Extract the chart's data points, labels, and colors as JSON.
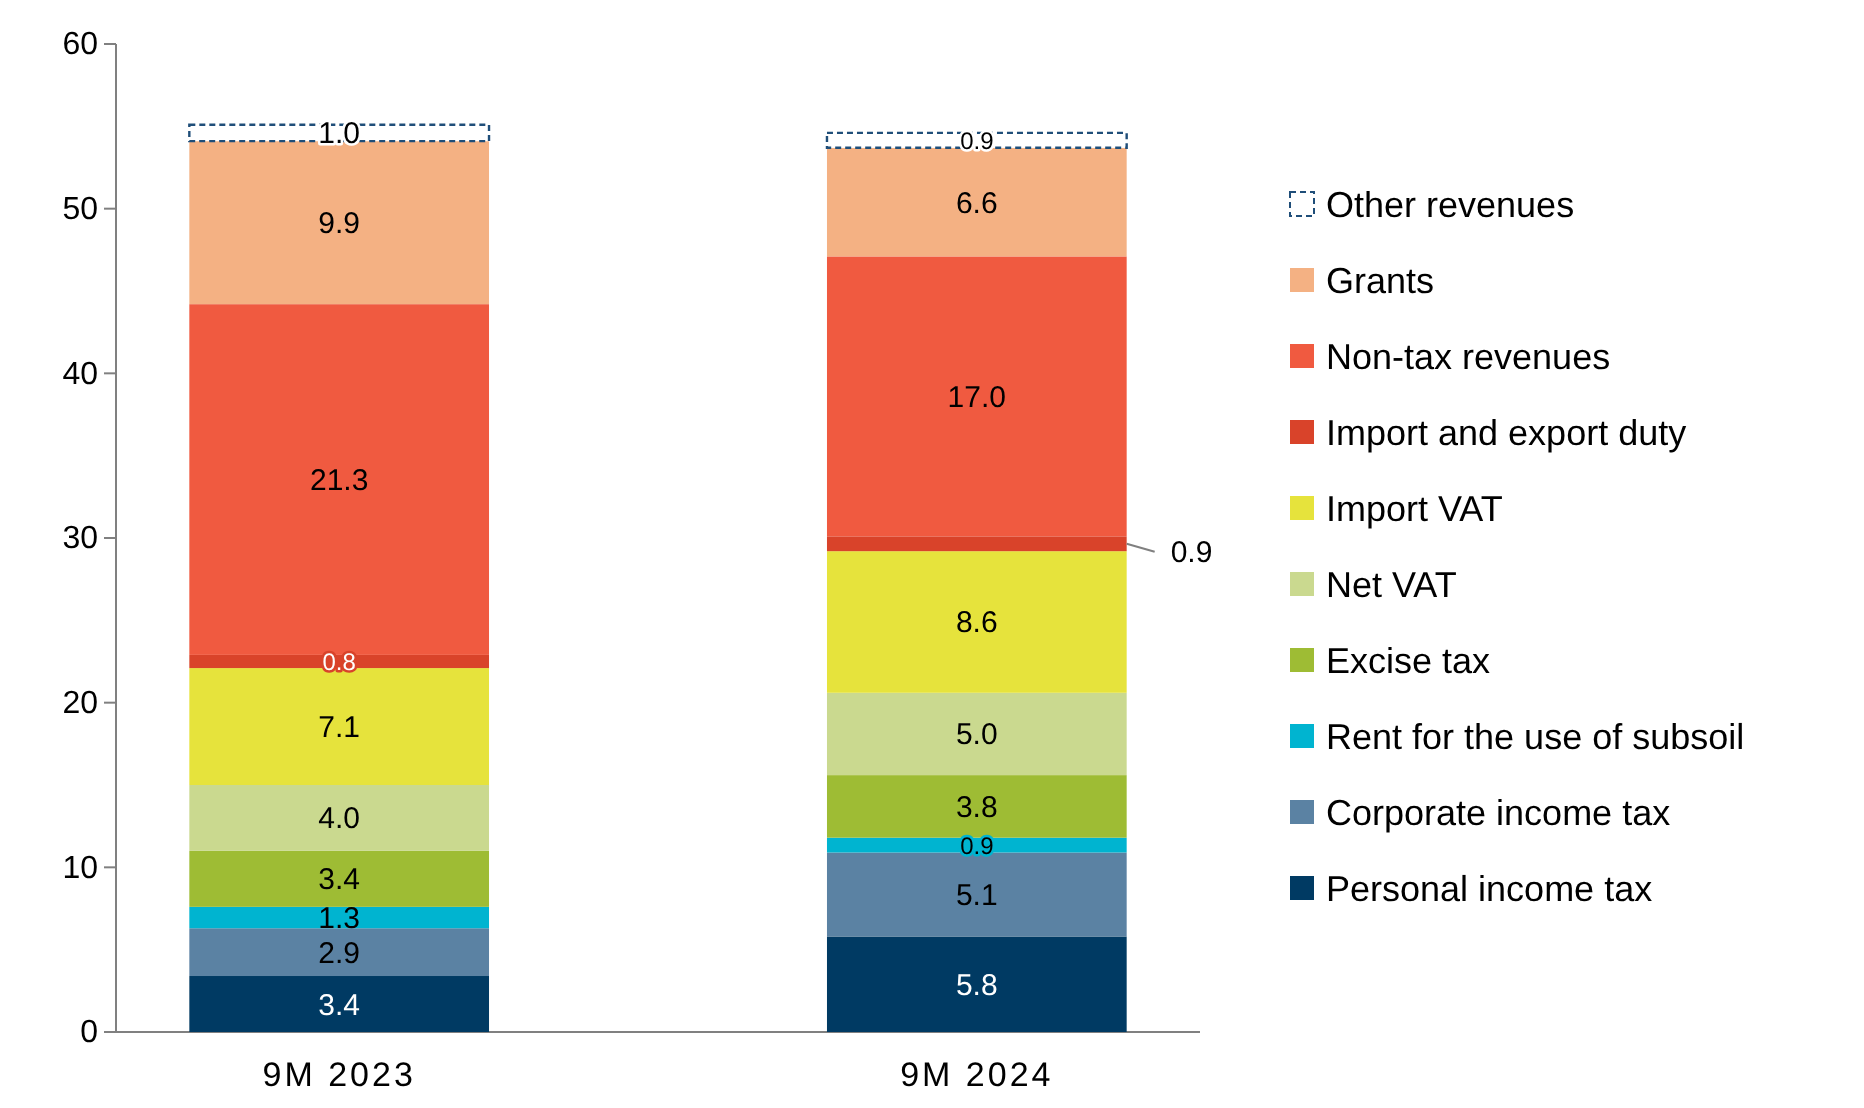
{
  "chart_data": {
    "type": "bar",
    "stacked": true,
    "categories": [
      "9M 2023",
      "9M 2024"
    ],
    "ylim": [
      0,
      60
    ],
    "yticks": [
      0,
      10,
      20,
      30,
      40,
      50,
      60
    ],
    "grid": false,
    "legend": "right",
    "series": [
      {
        "name": "Personal income tax",
        "color": "#003a63",
        "values": [
          3.4,
          5.8
        ],
        "value_labels": [
          "3.4",
          "5.8"
        ]
      },
      {
        "name": "Corporate income tax",
        "color": "#5b82a3",
        "values": [
          2.9,
          5.1
        ],
        "value_labels": [
          "2.9",
          "5.1"
        ]
      },
      {
        "name": "Rent for the use of subsoil",
        "color": "#00b4d0",
        "values": [
          1.3,
          0.9
        ],
        "value_labels": [
          "1.3",
          "0.9"
        ]
      },
      {
        "name": "Excise tax",
        "color": "#9ebc34",
        "values": [
          3.4,
          3.8
        ],
        "value_labels": [
          "3.4",
          "3.8"
        ]
      },
      {
        "name": "Net VAT",
        "color": "#cad98f",
        "values": [
          4.0,
          5.0
        ],
        "value_labels": [
          "4.0",
          "5.0"
        ]
      },
      {
        "name": "Import VAT",
        "color": "#e6e33c",
        "values": [
          7.1,
          8.6
        ],
        "value_labels": [
          "7.1",
          "8.6"
        ]
      },
      {
        "name": "Import and export duty",
        "color": "#d9432a",
        "values": [
          0.8,
          0.9
        ],
        "value_labels": [
          "0.8",
          "0.9"
        ]
      },
      {
        "name": "Non-tax revenues",
        "color": "#f05a40",
        "values": [
          21.3,
          17.0
        ],
        "value_labels": [
          "21.3",
          "17.0"
        ]
      },
      {
        "name": "Grants",
        "color": "#f4b183",
        "values": [
          9.9,
          6.6
        ],
        "value_labels": [
          "9.9",
          "6.6"
        ]
      },
      {
        "name": "Other revenues",
        "color": "#1f4e79",
        "line_style": "dashed",
        "values": [
          1.0,
          0.9
        ],
        "value_labels": [
          "1.0",
          "0.9"
        ]
      }
    ]
  }
}
